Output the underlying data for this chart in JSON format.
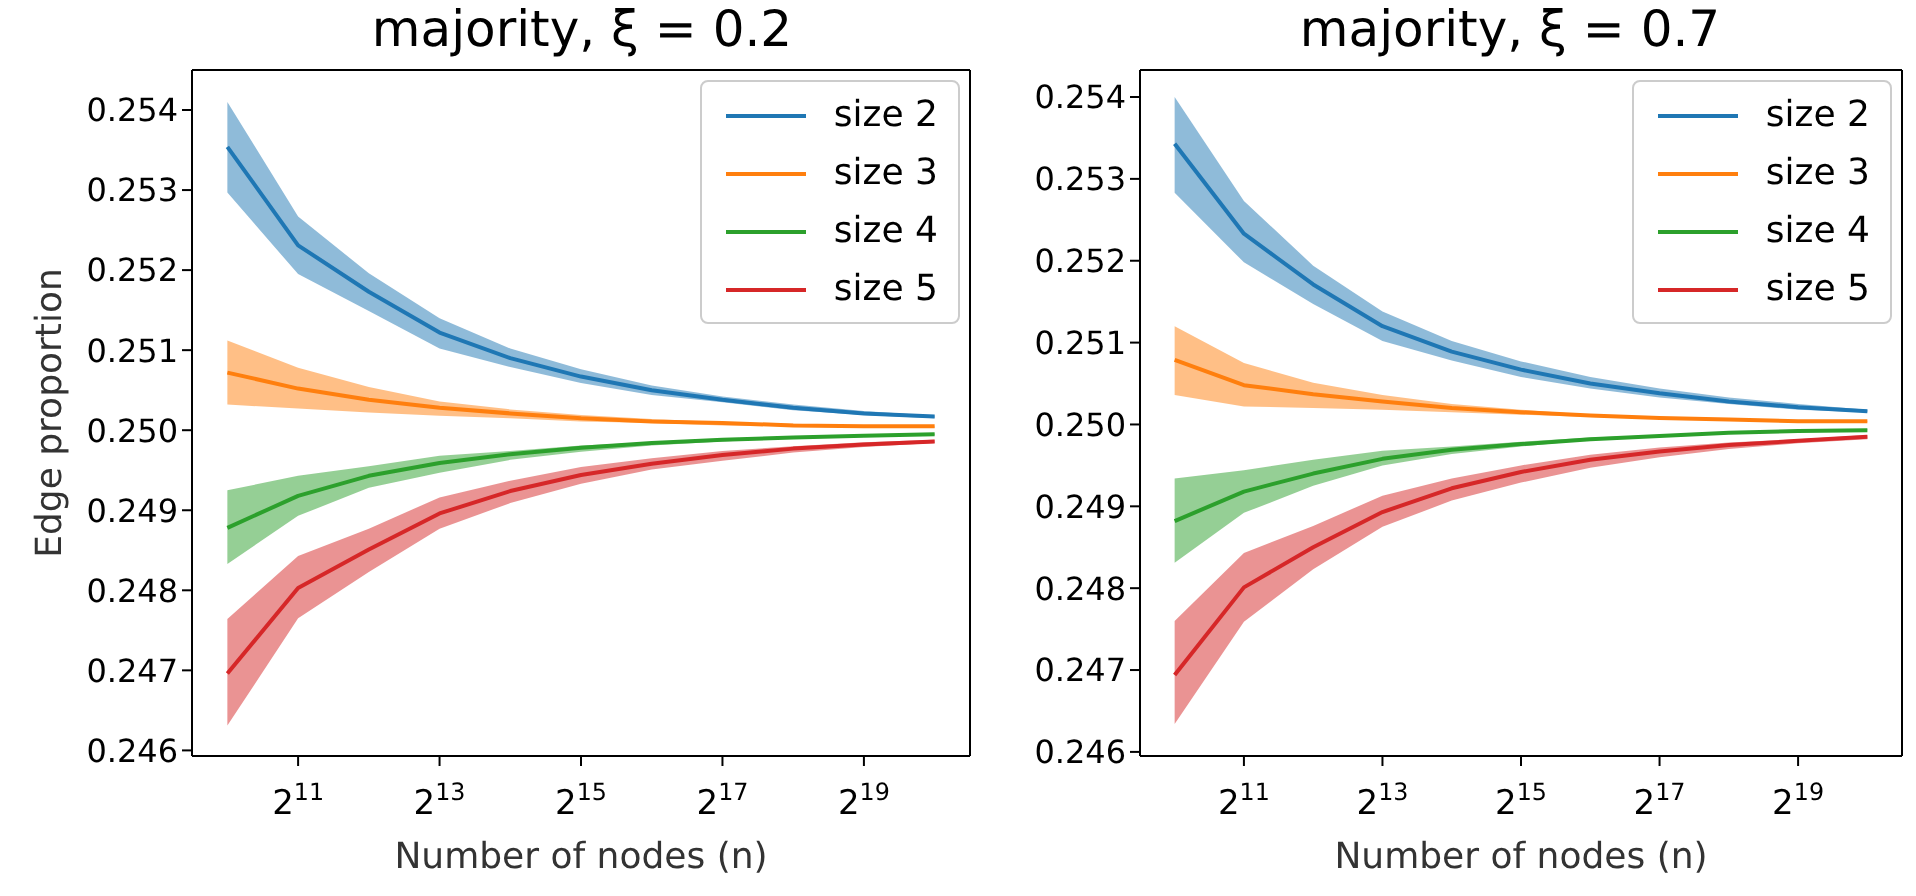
{
  "chart_data": [
    {
      "type": "line",
      "title": "majority, ξ = 0.2",
      "xlabel": "Number of nodes (n)",
      "ylabel": "Edge proportion",
      "log": "x",
      "legend": "top right",
      "grid": false,
      "x": [
        1024,
        2048,
        4096,
        8192,
        16384,
        32768,
        65536,
        131072,
        262144,
        524288,
        1048576
      ],
      "xlim": [
        724,
        1482910
      ],
      "xticks": [
        {
          "value": 2048,
          "label": "2$^{11}$"
        },
        {
          "value": 8192,
          "label": "2$^{13}$"
        },
        {
          "value": 32768,
          "label": "2$^{15}$"
        },
        {
          "value": 131072,
          "label": "2$^{17}$"
        },
        {
          "value": 524288,
          "label": "2$^{19}$"
        }
      ],
      "ylim": [
        0.24593,
        0.2545
      ],
      "yticks": [
        0.246,
        0.247,
        0.248,
        0.249,
        {
          "value": 0.25,
          "label": "0.250"
        },
        0.251,
        0.252,
        0.253,
        0.254
      ],
      "series": [
        {
          "name": "size 2",
          "color": "#1f77b4",
          "values": [
            0.25354,
            0.25231,
            0.25173,
            0.25122,
            0.2509,
            0.25067,
            0.2505,
            0.25038,
            0.25028,
            0.25021,
            0.25017
          ],
          "lower": [
            0.25297,
            0.25195,
            0.25149,
            0.25102,
            0.25079,
            0.25059,
            0.25044,
            0.25035,
            0.25025,
            0.25019,
            0.25015
          ],
          "upper": [
            0.2541,
            0.25267,
            0.25196,
            0.2514,
            0.25102,
            0.25076,
            0.25056,
            0.25042,
            0.25032,
            0.25024,
            0.25018
          ]
        },
        {
          "name": "size 3",
          "color": "#ff7f0e",
          "values": [
            0.25072,
            0.25052,
            0.25038,
            0.25028,
            0.25021,
            0.25015,
            0.25011,
            0.25009,
            0.25006,
            0.25005,
            0.25005
          ],
          "lower": [
            0.25032,
            0.25027,
            0.25022,
            0.25018,
            0.25015,
            0.25011,
            0.25009,
            0.25006,
            0.25005,
            0.25004,
            0.25003
          ],
          "upper": [
            0.25112,
            0.25078,
            0.25054,
            0.25036,
            0.25026,
            0.25019,
            0.25014,
            0.2501,
            0.25008,
            0.25006,
            0.25005
          ]
        },
        {
          "name": "size 4",
          "color": "#2ca02c",
          "values": [
            0.24878,
            0.24918,
            0.24943,
            0.24959,
            0.2497,
            0.24978,
            0.24984,
            0.24988,
            0.24991,
            0.24993,
            0.24995
          ],
          "lower": [
            0.24833,
            0.24893,
            0.24928,
            0.24947,
            0.24963,
            0.24973,
            0.24981,
            0.24986,
            0.2499,
            0.24993,
            0.24994
          ],
          "upper": [
            0.24925,
            0.24943,
            0.24955,
            0.24968,
            0.24974,
            0.24981,
            0.24985,
            0.24989,
            0.24992,
            0.24994,
            0.24996
          ]
        },
        {
          "name": "size 5",
          "color": "#d62728",
          "values": [
            0.24696,
            0.24803,
            0.24851,
            0.24896,
            0.24924,
            0.24944,
            0.24958,
            0.24969,
            0.24977,
            0.24982,
            0.24986
          ],
          "lower": [
            0.24631,
            0.24765,
            0.24823,
            0.24877,
            0.24909,
            0.24933,
            0.24951,
            0.24962,
            0.24972,
            0.24979,
            0.24984
          ],
          "upper": [
            0.24764,
            0.24843,
            0.24877,
            0.24916,
            0.24937,
            0.24954,
            0.24965,
            0.24974,
            0.2498,
            0.24985,
            0.24988
          ]
        }
      ]
    },
    {
      "type": "line",
      "title": "majority, ξ = 0.7",
      "xlabel": "Number of nodes (n)",
      "log": "x",
      "legend": "top right",
      "grid": false,
      "x": [
        1024,
        2048,
        4096,
        8192,
        16384,
        32768,
        65536,
        131072,
        262144,
        524288,
        1048576
      ],
      "xlim": [
        724,
        1482910
      ],
      "xticks": [
        {
          "value": 2048,
          "label": "2$^{11}$"
        },
        {
          "value": 8192,
          "label": "2$^{13}$"
        },
        {
          "value": 32768,
          "label": "2$^{15}$"
        },
        {
          "value": 131072,
          "label": "2$^{17}$"
        },
        {
          "value": 524288,
          "label": "2$^{19}$"
        }
      ],
      "ylim": [
        0.24595,
        0.25433
      ],
      "yticks": [
        0.246,
        0.247,
        0.248,
        0.249,
        {
          "value": 0.25,
          "label": "0.250"
        },
        0.251,
        0.252,
        0.253,
        0.254
      ],
      "series": [
        {
          "name": "size 2",
          "color": "#1f77b4",
          "values": [
            0.25343,
            0.25233,
            0.25171,
            0.2512,
            0.25089,
            0.25067,
            0.2505,
            0.25038,
            0.25028,
            0.25021,
            0.25016
          ],
          "lower": [
            0.25283,
            0.25198,
            0.25147,
            0.25102,
            0.25078,
            0.25058,
            0.25044,
            0.25033,
            0.25025,
            0.25018,
            0.25015
          ],
          "upper": [
            0.254,
            0.25273,
            0.25194,
            0.25138,
            0.25102,
            0.25077,
            0.25058,
            0.25044,
            0.25033,
            0.25025,
            0.25018
          ]
        },
        {
          "name": "size 3",
          "color": "#ff7f0e",
          "values": [
            0.25079,
            0.25048,
            0.25037,
            0.25028,
            0.2502,
            0.25015,
            0.25011,
            0.25008,
            0.25006,
            0.25004,
            0.25004
          ],
          "lower": [
            0.25036,
            0.25022,
            0.2502,
            0.25018,
            0.25015,
            0.25012,
            0.25009,
            0.25007,
            0.25005,
            0.25004,
            0.25003
          ],
          "upper": [
            0.2512,
            0.25075,
            0.25051,
            0.25036,
            0.25025,
            0.25018,
            0.25012,
            0.25009,
            0.25007,
            0.25005,
            0.25004
          ]
        },
        {
          "name": "size 4",
          "color": "#2ca02c",
          "values": [
            0.24882,
            0.24918,
            0.2494,
            0.24958,
            0.24969,
            0.24976,
            0.24982,
            0.24986,
            0.2499,
            0.24992,
            0.24993
          ],
          "lower": [
            0.24831,
            0.24892,
            0.24925,
            0.2495,
            0.24964,
            0.24973,
            0.24981,
            0.24986,
            0.24989,
            0.24991,
            0.24993
          ],
          "upper": [
            0.24934,
            0.24944,
            0.24957,
            0.24968,
            0.24973,
            0.24979,
            0.24984,
            0.24987,
            0.2499,
            0.24993,
            0.24994
          ]
        },
        {
          "name": "size 5",
          "color": "#d62728",
          "values": [
            0.24694,
            0.24801,
            0.2485,
            0.24893,
            0.24922,
            0.24942,
            0.24957,
            0.24967,
            0.24975,
            0.2498,
            0.24985
          ],
          "lower": [
            0.24634,
            0.24759,
            0.24823,
            0.24875,
            0.24907,
            0.24929,
            0.24947,
            0.2496,
            0.2497,
            0.24977,
            0.24982
          ],
          "upper": [
            0.2476,
            0.24843,
            0.24876,
            0.24913,
            0.24934,
            0.2495,
            0.24963,
            0.24972,
            0.24978,
            0.24982,
            0.24987
          ]
        }
      ]
    }
  ]
}
